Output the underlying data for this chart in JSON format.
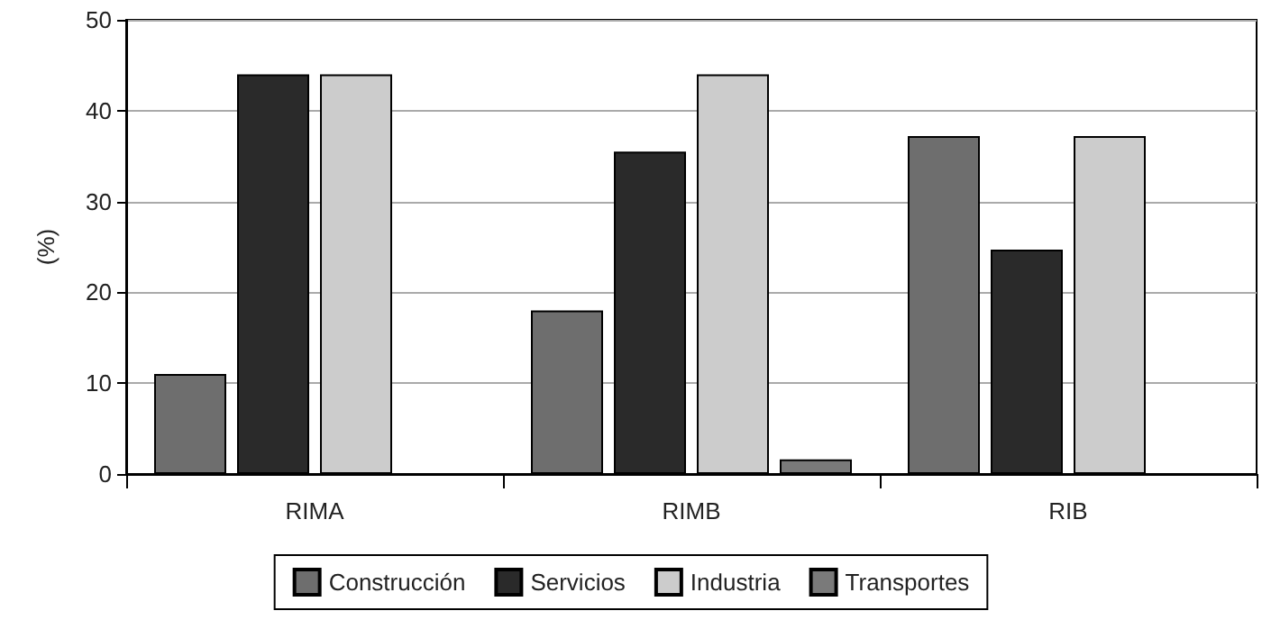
{
  "chart_data": {
    "type": "bar",
    "ylabel": "(%)",
    "categories": [
      "RIMA",
      "RIMB",
      "RIB"
    ],
    "series": [
      {
        "name": "Construcción",
        "color": "#6e6e6e",
        "values": [
          11,
          18,
          37.2
        ]
      },
      {
        "name": "Servicios",
        "color": "#2a2a2a",
        "values": [
          44,
          35.5,
          24.7
        ]
      },
      {
        "name": "Industria",
        "color": "#cccccc",
        "values": [
          44,
          44,
          37.2
        ]
      },
      {
        "name": "Transportes",
        "color": "#7a7a7a",
        "values": [
          null,
          1.6,
          null
        ]
      }
    ],
    "ylim": [
      0,
      50
    ],
    "yticks": [
      0,
      10,
      20,
      30,
      40,
      50
    ],
    "grid": "y",
    "legend": "bottom"
  }
}
